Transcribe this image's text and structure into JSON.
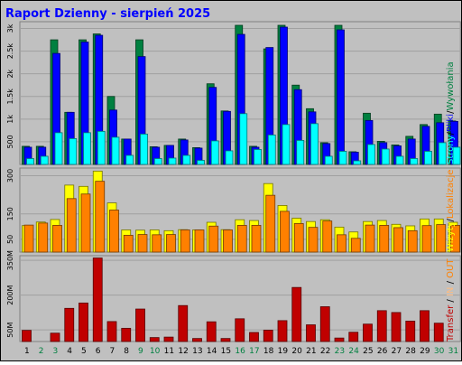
{
  "title": "Raport Dzienny -  sierpień 2025",
  "colors": {
    "frame_bg": "#c0c0c0",
    "title": "#0000ff",
    "wizyty": "#ffff00",
    "lokalizacje": "#ff8000",
    "strony": "#00ffff",
    "pliki": "#0000ff",
    "wywolania": "#008040",
    "transfer": "#c00000",
    "in": "#ffbb80",
    "out": "#ff8000",
    "weekend_label": "#008040"
  },
  "chart_data": {
    "type": "bar",
    "x": [
      "1",
      "2",
      "3",
      "4",
      "5",
      "6",
      "7",
      "8",
      "9",
      "10",
      "11",
      "12",
      "13",
      "14",
      "15",
      "16",
      "17",
      "18",
      "19",
      "20",
      "21",
      "22",
      "23",
      "24",
      "25",
      "26",
      "27",
      "28",
      "29",
      "30",
      "31"
    ],
    "weekend_days": [
      "2",
      "3",
      "9",
      "10",
      "16",
      "17",
      "23",
      "24",
      "30",
      "31"
    ],
    "panels": [
      {
        "name": "requests",
        "axis_ticks": [
          {
            "value": 500,
            "label": "500"
          },
          {
            "value": 1000,
            "label": "1k"
          },
          {
            "value": 1500,
            "label": "1.5k"
          },
          {
            "value": 2000,
            "label": "2k"
          },
          {
            "value": 2500,
            "label": "2.5k"
          },
          {
            "value": 3000,
            "label": "3k"
          }
        ],
        "ylim": [
          0,
          3150
        ],
        "legend_label": "Strony/Pliki/Wywołania",
        "legend_parts": [
          "Strony",
          "Pliki",
          "Wywołania"
        ],
        "series": [
          {
            "name": "Wywołania",
            "color_key": "wywolania",
            "values": [
              400,
              400,
              2750,
              1150,
              2750,
              2880,
              1500,
              560,
              2750,
              390,
              420,
              560,
              370,
              1780,
              1180,
              3070,
              400,
              2550,
              3070,
              1750,
              1230,
              480,
              3070,
              280,
              1130,
              510,
              430,
              620,
              880,
              1110,
              960
            ]
          },
          {
            "name": "Pliki",
            "color_key": "pliki",
            "values": [
              380,
              380,
              2450,
              1150,
              2700,
              2850,
              1200,
              560,
              2380,
              380,
              420,
              540,
              360,
              1700,
              1170,
              2870,
              380,
              2580,
              3030,
              1650,
              1160,
              460,
              2970,
              270,
              970,
              480,
              410,
              560,
              840,
              920,
              950
            ]
          },
          {
            "name": "Strony",
            "color_key": "strony",
            "values": [
              130,
              180,
              700,
              570,
              700,
              730,
              600,
              200,
              670,
              130,
              140,
              200,
              90,
              520,
              300,
              1120,
              330,
              650,
              880,
              530,
              900,
              180,
              290,
              80,
              440,
              340,
              180,
              130,
              290,
              480,
              380
            ]
          }
        ]
      },
      {
        "name": "visits",
        "axis_ticks": [
          {
            "value": 50,
            "label": "50"
          },
          {
            "value": 150,
            "label": "150"
          },
          {
            "value": 300,
            "label": "300"
          }
        ],
        "ylim": [
          0,
          330
        ],
        "legend_label": "Wizyty/Lokalizacje",
        "legend_parts": [
          "Wizyty",
          "Lokalizacje"
        ],
        "series": [
          {
            "name": "Wizyty",
            "color_key": "wizyty",
            "values": [
              104,
              118,
              128,
              263,
              258,
              318,
              193,
              87,
              86,
              87,
              84,
              88,
              87,
              117,
              88,
              127,
              124,
              269,
              183,
              133,
              120,
              127,
              98,
              79,
              120,
              124,
              109,
              103,
              130,
              130,
              117
            ]
          },
          {
            "name": "Lokalizacje",
            "color_key": "lokalizacje",
            "values": [
              106,
              114,
              105,
              210,
              228,
              278,
              165,
              66,
              69,
              68,
              69,
              87,
              87,
              102,
              87,
              105,
              105,
              223,
              160,
              112,
              97,
              122,
              68,
              54,
              106,
              105,
              96,
              84,
              104,
              108,
              105
            ]
          }
        ]
      },
      {
        "name": "transfer",
        "axis_ticks": [
          {
            "value": 50,
            "label": "50M"
          },
          {
            "value": 200,
            "label": "200M"
          },
          {
            "value": 350,
            "label": "350M"
          }
        ],
        "ylim": [
          0,
          370
        ],
        "legend_label": "Transfer / IN / OUT",
        "legend_parts": [
          "Transfer",
          "IN",
          "OUT"
        ],
        "series": [
          {
            "name": "Transfer",
            "color_key": "transfer",
            "values": [
              48,
              0,
              36,
              143,
              166,
              360,
              86,
              57,
              140,
              17,
              19,
              155,
              13,
              85,
              13,
              98,
              39,
              49,
              90,
              233,
              72,
              150,
              15,
              40,
              75,
              133,
              125,
              88,
              133,
              79,
              0
            ]
          }
        ]
      }
    ]
  }
}
